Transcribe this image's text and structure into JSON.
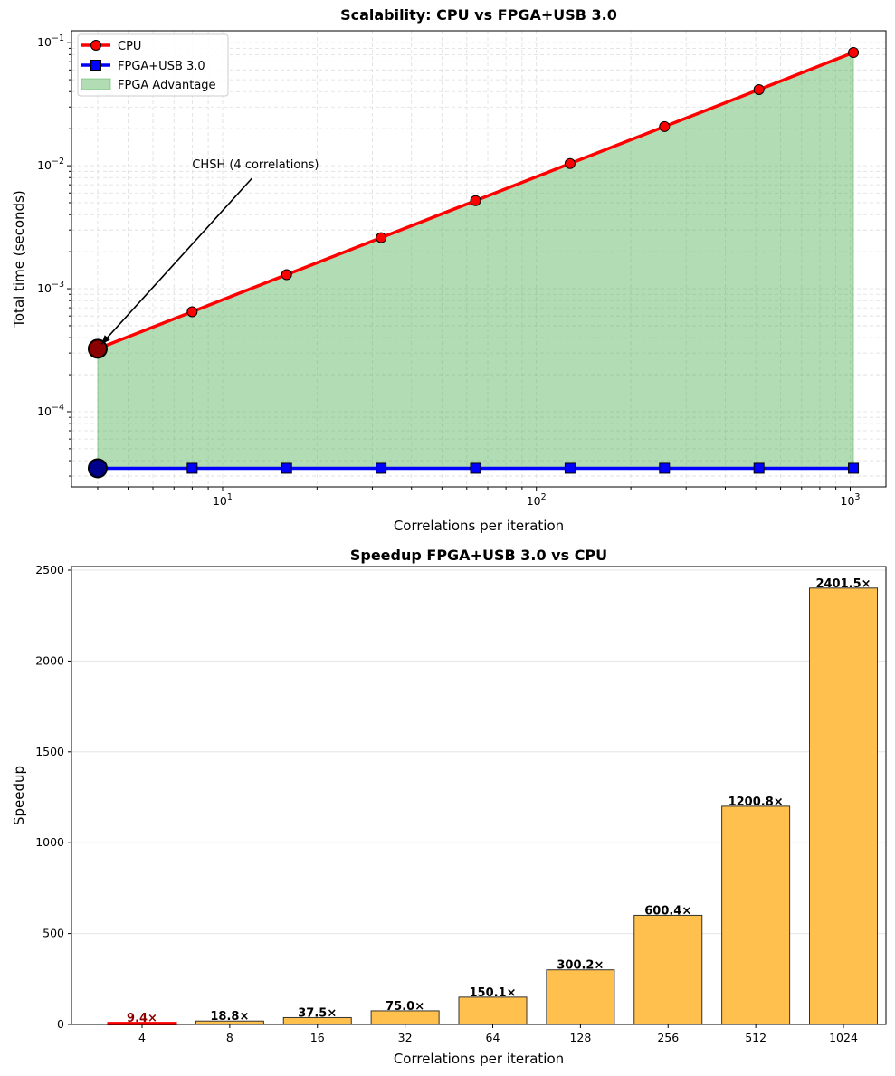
{
  "chart_data": [
    {
      "type": "line",
      "title": "Scalability: CPU vs FPGA+USB 3.0",
      "xlabel": "Correlations per iteration",
      "ylabel": "Total time (seconds)",
      "xscale": "log",
      "yscale": "log",
      "xlim": [
        3.3,
        1300
      ],
      "ylim": [
        2.45e-05,
        0.125
      ],
      "x_tick_labels": [
        "10",
        "10",
        "10"
      ],
      "x_tick_exponents": [
        "1",
        "2",
        "3"
      ],
      "y_tick_labels": [
        "10",
        "10",
        "10",
        "10"
      ],
      "y_tick_exponents": [
        "−4",
        "−3",
        "−2",
        "−1"
      ],
      "grid": true,
      "legend_position": "top-left",
      "x": [
        4,
        8,
        16,
        32,
        64,
        128,
        256,
        512,
        1024
      ],
      "series": [
        {
          "name": "CPU",
          "values": [
            0.000325,
            0.00065,
            0.0013,
            0.0026,
            0.0052,
            0.0104,
            0.0208,
            0.0416,
            0.0832
          ],
          "color": "#ff0000",
          "marker": "circle"
        },
        {
          "name": "FPGA+USB 3.0",
          "values": [
            3.47e-05,
            3.47e-05,
            3.47e-05,
            3.47e-05,
            3.47e-05,
            3.47e-05,
            3.47e-05,
            3.47e-05,
            3.47e-05
          ],
          "color": "#0000ff",
          "marker": "square"
        }
      ],
      "fill": {
        "name": "FPGA Advantage",
        "color": "#4caf50"
      },
      "highlight_points": [
        {
          "x": 4,
          "y": 0.000325,
          "color": "#8b0000"
        },
        {
          "x": 4,
          "y": 3.47e-05,
          "color": "#00008b"
        }
      ],
      "annotation": {
        "text": "CHSH (4 correlations)",
        "x": 4,
        "y": 0.000325,
        "text_x": 8,
        "text_y": 0.0095
      }
    },
    {
      "type": "bar",
      "title": "Speedup FPGA+USB 3.0 vs CPU",
      "xlabel": "Correlations per iteration",
      "ylabel": "Speedup",
      "ylim": [
        0,
        2520
      ],
      "y_ticks": [
        0,
        500,
        1000,
        1500,
        2000,
        2500
      ],
      "grid": true,
      "categories": [
        "4",
        "8",
        "16",
        "32",
        "64",
        "128",
        "256",
        "512",
        "1024"
      ],
      "values": [
        9.4,
        18.8,
        37.5,
        75.0,
        150.1,
        300.2,
        600.4,
        1200.8,
        2401.5
      ],
      "value_labels": [
        "9.4×",
        "18.8×",
        "37.5×",
        "75.0×",
        "150.1×",
        "300.2×",
        "600.4×",
        "1200.8×",
        "2401.5×"
      ],
      "bar_color": "#ffc04d",
      "highlight_index": 0,
      "highlight_color": "#ff0000",
      "highlight_label_color": "#8b0000"
    }
  ]
}
